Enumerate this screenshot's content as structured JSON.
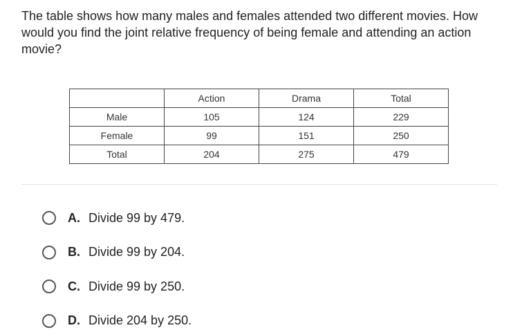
{
  "question": "The table shows how many males and females attended two different movies. How would you find the joint relative frequency of being female and attending an action movie?",
  "table": {
    "header": [
      "Action",
      "Drama",
      "Total"
    ],
    "rows": [
      [
        "Male",
        105,
        124,
        229
      ],
      [
        "Female",
        99,
        151,
        250
      ],
      [
        "Total",
        204,
        275,
        479
      ]
    ]
  },
  "options": [
    {
      "letter": "A.",
      "text": "Divide 99 by 479."
    },
    {
      "letter": "B.",
      "text": "Divide 99 by 204."
    },
    {
      "letter": "C.",
      "text": "Divide 99 by 250."
    },
    {
      "letter": "D.",
      "text": "Divide 204 by 250."
    }
  ]
}
